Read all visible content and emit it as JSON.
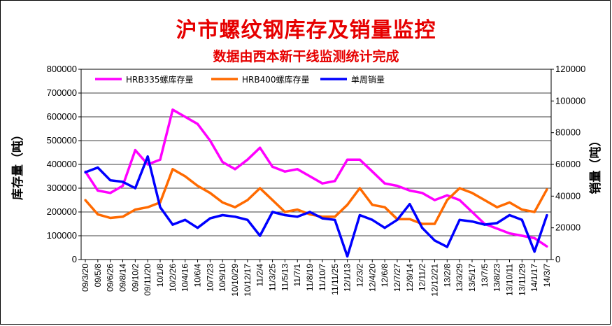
{
  "chart_data": {
    "type": "line",
    "title": "沪市螺纹钢库存及销量监控",
    "subtitle": "数据由西本新干线监测统计完成",
    "ylabel_left": "库存量（吨）",
    "ylabel_right": "销量（吨）",
    "ylim_left": [
      0,
      800000
    ],
    "ylim_right": [
      0,
      120000
    ],
    "yticks_left": [
      "0",
      "100000",
      "200000",
      "300000",
      "400000",
      "500000",
      "600000",
      "700000",
      "800000"
    ],
    "yticks_right": [
      "0",
      "20000",
      "40000",
      "60000",
      "80000",
      "100000",
      "120000"
    ],
    "legend_position": "top",
    "grid": true,
    "categories": [
      "09/3/20",
      "09/5/8",
      "09/6/26",
      "09/8/14",
      "09/10/2",
      "09/11/20",
      "10/1/8",
      "10/2/26",
      "10/4/16",
      "10/6/4",
      "10/7/23",
      "10/9/10",
      "10/10/29",
      "10/12/17",
      "11/2/4",
      "11/3/25",
      "11/5/13",
      "11/7/1",
      "11/8/19",
      "11/10/7",
      "11/11/25",
      "12/1/13",
      "12/3/2",
      "12/4/20",
      "12/6/8",
      "12/7/27",
      "12/9/14",
      "12/11/2",
      "12/12/21",
      "13/2/8",
      "13/3/29",
      "13/5/17",
      "13/7/5",
      "13/8/23",
      "13/10/11",
      "13/11/29",
      "14/1/17",
      "14/3/7"
    ],
    "series": [
      {
        "name": "HRB335螺库存量",
        "axis": "left",
        "color": "#ff00ff",
        "values": [
          370000,
          290000,
          280000,
          310000,
          460000,
          400000,
          420000,
          630000,
          600000,
          570000,
          500000,
          410000,
          380000,
          420000,
          470000,
          390000,
          370000,
          380000,
          350000,
          320000,
          330000,
          420000,
          420000,
          370000,
          320000,
          310000,
          290000,
          280000,
          250000,
          270000,
          250000,
          200000,
          150000,
          130000,
          110000,
          100000,
          90000,
          55000
        ]
      },
      {
        "name": "HRB400螺库存量",
        "axis": "left",
        "color": "#ff6a00",
        "values": [
          250000,
          190000,
          175000,
          180000,
          210000,
          220000,
          240000,
          380000,
          350000,
          310000,
          280000,
          240000,
          220000,
          250000,
          300000,
          250000,
          200000,
          210000,
          190000,
          180000,
          180000,
          230000,
          300000,
          230000,
          220000,
          170000,
          170000,
          150000,
          150000,
          250000,
          300000,
          280000,
          250000,
          220000,
          240000,
          210000,
          200000,
          295000
        ]
      },
      {
        "name": "单周销量",
        "axis": "right",
        "color": "#0000ff",
        "values": [
          55000,
          58000,
          50000,
          49000,
          45000,
          65000,
          33000,
          22000,
          25000,
          20000,
          26000,
          28000,
          27000,
          25000,
          15000,
          30000,
          28000,
          27000,
          30000,
          26000,
          25000,
          2000,
          28000,
          25000,
          20000,
          25000,
          35000,
          20000,
          12000,
          8000,
          25000,
          24000,
          22000,
          23000,
          28000,
          25000,
          5000,
          28000
        ]
      }
    ]
  }
}
